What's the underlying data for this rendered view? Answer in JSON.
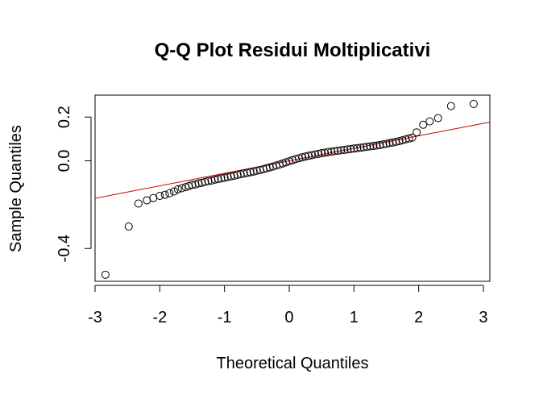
{
  "chart_data": {
    "type": "scatter",
    "title": "Q-Q Plot Residui Moltiplicativi",
    "xlabel": "Theoretical Quantiles",
    "ylabel": "Sample Quantiles",
    "xlim": [
      -3.0,
      3.1
    ],
    "ylim": [
      -0.55,
      0.3
    ],
    "x_ticks": [
      -3,
      -2,
      -1,
      0,
      1,
      2,
      3
    ],
    "y_ticks": [
      -0.4,
      0.0,
      0.2
    ],
    "y_tick_labels": [
      "-0.4",
      "0.0",
      "0.2"
    ],
    "grid": false,
    "reference_line": {
      "intercept": 0.0,
      "slope": 0.057,
      "color": "#cc0000"
    },
    "point_color": "#000000",
    "points": [
      [
        -2.84,
        -0.52
      ],
      [
        -2.48,
        -0.3
      ],
      [
        -2.33,
        -0.195
      ],
      [
        -2.2,
        -0.18
      ],
      [
        -2.1,
        -0.17
      ],
      [
        -2.0,
        -0.16
      ],
      [
        -1.92,
        -0.155
      ],
      [
        -1.85,
        -0.148
      ],
      [
        -1.78,
        -0.14
      ],
      [
        -1.72,
        -0.13
      ],
      [
        -1.66,
        -0.125
      ],
      [
        -1.6,
        -0.12
      ],
      [
        -1.55,
        -0.115
      ],
      [
        -1.5,
        -0.11
      ],
      [
        -1.45,
        -0.108
      ],
      [
        -1.4,
        -0.103
      ],
      [
        -1.35,
        -0.1
      ],
      [
        -1.3,
        -0.096
      ],
      [
        -1.25,
        -0.093
      ],
      [
        -1.2,
        -0.09
      ],
      [
        -1.15,
        -0.086
      ],
      [
        -1.1,
        -0.083
      ],
      [
        -1.05,
        -0.08
      ],
      [
        -1.0,
        -0.077
      ],
      [
        -0.95,
        -0.074
      ],
      [
        -0.9,
        -0.071
      ],
      [
        -0.85,
        -0.068
      ],
      [
        -0.8,
        -0.064
      ],
      [
        -0.75,
        -0.061
      ],
      [
        -0.7,
        -0.058
      ],
      [
        -0.65,
        -0.055
      ],
      [
        -0.6,
        -0.052
      ],
      [
        -0.55,
        -0.049
      ],
      [
        -0.5,
        -0.045
      ],
      [
        -0.45,
        -0.042
      ],
      [
        -0.4,
        -0.038
      ],
      [
        -0.35,
        -0.034
      ],
      [
        -0.3,
        -0.03
      ],
      [
        -0.25,
        -0.026
      ],
      [
        -0.2,
        -0.021
      ],
      [
        -0.15,
        -0.017
      ],
      [
        -0.1,
        -0.012
      ],
      [
        -0.05,
        -0.007
      ],
      [
        0.0,
        -0.002
      ],
      [
        0.05,
        0.003
      ],
      [
        0.1,
        0.008
      ],
      [
        0.15,
        0.012
      ],
      [
        0.2,
        0.016
      ],
      [
        0.25,
        0.02
      ],
      [
        0.3,
        0.023
      ],
      [
        0.35,
        0.026
      ],
      [
        0.4,
        0.029
      ],
      [
        0.45,
        0.032
      ],
      [
        0.5,
        0.035
      ],
      [
        0.55,
        0.037
      ],
      [
        0.6,
        0.04
      ],
      [
        0.65,
        0.042
      ],
      [
        0.7,
        0.044
      ],
      [
        0.75,
        0.046
      ],
      [
        0.8,
        0.048
      ],
      [
        0.85,
        0.05
      ],
      [
        0.9,
        0.052
      ],
      [
        0.95,
        0.054
      ],
      [
        1.0,
        0.056
      ],
      [
        1.05,
        0.058
      ],
      [
        1.1,
        0.06
      ],
      [
        1.15,
        0.062
      ],
      [
        1.2,
        0.064
      ],
      [
        1.25,
        0.066
      ],
      [
        1.3,
        0.068
      ],
      [
        1.35,
        0.07
      ],
      [
        1.4,
        0.072
      ],
      [
        1.45,
        0.075
      ],
      [
        1.5,
        0.078
      ],
      [
        1.55,
        0.081
      ],
      [
        1.6,
        0.084
      ],
      [
        1.65,
        0.087
      ],
      [
        1.7,
        0.09
      ],
      [
        1.75,
        0.094
      ],
      [
        1.8,
        0.098
      ],
      [
        1.85,
        0.102
      ],
      [
        1.9,
        0.106
      ],
      [
        1.97,
        0.13
      ],
      [
        2.07,
        0.165
      ],
      [
        2.17,
        0.18
      ],
      [
        2.3,
        0.195
      ],
      [
        2.5,
        0.25
      ],
      [
        2.85,
        0.26
      ]
    ]
  }
}
